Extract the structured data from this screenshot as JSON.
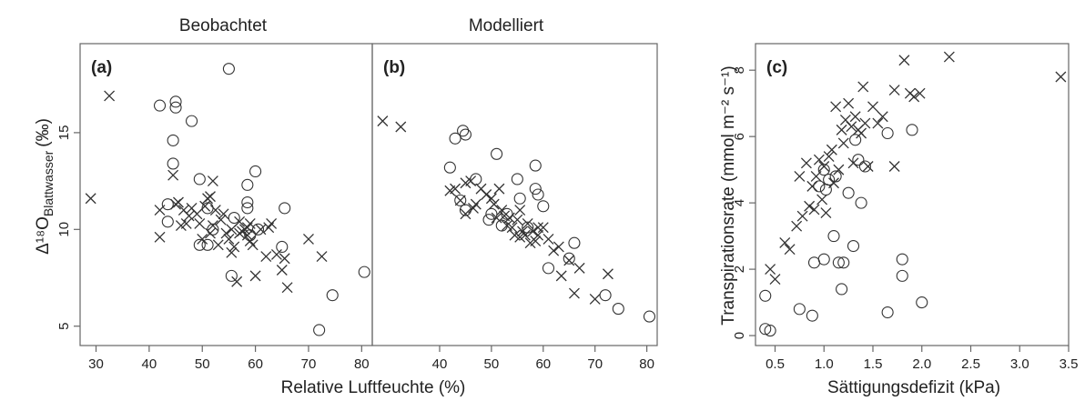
{
  "titles": {
    "left": "Beobachtet",
    "middle": "Modelliert",
    "xlabel_ab": "Relative Luftfeuchte (%)",
    "ylabel_ab": "Δ¹⁸O",
    "ylabel_ab_sub": "Blattwasser",
    "ylabel_ab_unit": "(‰)",
    "xlabel_c": "Sättigungsdefizit (kPa)",
    "ylabel_c": "Transpirationsrate (mmol m⁻² s⁻¹)"
  },
  "chart_data": [
    {
      "type": "scatter",
      "panel": "(a)",
      "title": "Beobachtet",
      "xlim": [
        27,
        82
      ],
      "ylim": [
        4,
        19.6
      ],
      "xticks": [
        30,
        40,
        50,
        60,
        70,
        80
      ],
      "yticks": [
        5,
        10,
        15
      ],
      "circles": [
        [
          42,
          16.4
        ],
        [
          43.5,
          11.3
        ],
        [
          43.5,
          10.4
        ],
        [
          44.5,
          13.4
        ],
        [
          44.5,
          14.6
        ],
        [
          45,
          16.3
        ],
        [
          45,
          16.6
        ],
        [
          48,
          15.6
        ],
        [
          49.5,
          12.6
        ],
        [
          49.5,
          9.2
        ],
        [
          51,
          9.2
        ],
        [
          51,
          11.1
        ],
        [
          52,
          10
        ],
        [
          55,
          18.3
        ],
        [
          55.5,
          7.6
        ],
        [
          56,
          10.6
        ],
        [
          58.5,
          12.3
        ],
        [
          58.5,
          11.4
        ],
        [
          58.5,
          11.1
        ],
        [
          59,
          9.7
        ],
        [
          60,
          13
        ],
        [
          60.5,
          10
        ],
        [
          65,
          9.1
        ],
        [
          65.5,
          11.1
        ],
        [
          72,
          4.8
        ],
        [
          74.5,
          6.6
        ],
        [
          80.5,
          7.8
        ]
      ],
      "crosses": [
        [
          29,
          11.6
        ],
        [
          32.5,
          16.9
        ],
        [
          42,
          11
        ],
        [
          42,
          9.6
        ],
        [
          44.5,
          12.8
        ],
        [
          45,
          11.3
        ],
        [
          45.5,
          11.4
        ],
        [
          46,
          10.2
        ],
        [
          46.5,
          11
        ],
        [
          47,
          10.3
        ],
        [
          47.5,
          10.7
        ],
        [
          48,
          11.1
        ],
        [
          49,
          10.8
        ],
        [
          49.5,
          10.3
        ],
        [
          50,
          9.5
        ],
        [
          50.5,
          11.2
        ],
        [
          51,
          11.6
        ],
        [
          51.5,
          9.8
        ],
        [
          51.5,
          11.7
        ],
        [
          52,
          12.5
        ],
        [
          52,
          10.2
        ],
        [
          52.5,
          11
        ],
        [
          53,
          9.2
        ],
        [
          53.5,
          10.5
        ],
        [
          54,
          10.8
        ],
        [
          54.5,
          9.8
        ],
        [
          55,
          9.5
        ],
        [
          55.5,
          10
        ],
        [
          55.5,
          8.8
        ],
        [
          56,
          9.1
        ],
        [
          56.5,
          7.3
        ],
        [
          57,
          10.4
        ],
        [
          57,
          9.8
        ],
        [
          57.5,
          9.9
        ],
        [
          58,
          10
        ],
        [
          58.5,
          9.7
        ],
        [
          58.5,
          10.1
        ],
        [
          59,
          9.4
        ],
        [
          59,
          10.3
        ],
        [
          59.5,
          9.2
        ],
        [
          60,
          7.6
        ],
        [
          61,
          10
        ],
        [
          62,
          8.6
        ],
        [
          62.5,
          10.1
        ],
        [
          63,
          10.3
        ],
        [
          64,
          8.7
        ],
        [
          65,
          7.9
        ],
        [
          65.5,
          8.5
        ],
        [
          66,
          7
        ],
        [
          70,
          9.5
        ],
        [
          72.5,
          8.6
        ]
      ]
    },
    {
      "type": "scatter",
      "panel": "(b)",
      "title": "Modelliert",
      "xlim": [
        27,
        82
      ],
      "ylim": [
        4,
        19.6
      ],
      "xticks": [
        40,
        50,
        60,
        70,
        80
      ],
      "yticks": [
        5,
        10,
        15
      ],
      "circles": [
        [
          42,
          13.2
        ],
        [
          43,
          14.7
        ],
        [
          44,
          11.5
        ],
        [
          44.5,
          15.1
        ],
        [
          45,
          14.9
        ],
        [
          45,
          11
        ],
        [
          47,
          12.6
        ],
        [
          49.5,
          10.5
        ],
        [
          50,
          10.8
        ],
        [
          51,
          13.9
        ],
        [
          52,
          10.2
        ],
        [
          53,
          10.8
        ],
        [
          55,
          12.6
        ],
        [
          55.5,
          11.6
        ],
        [
          57,
          10.1
        ],
        [
          58.5,
          13.3
        ],
        [
          58.5,
          12.1
        ],
        [
          59,
          11.8
        ],
        [
          60,
          11.2
        ],
        [
          61,
          8
        ],
        [
          65,
          8.5
        ],
        [
          66,
          9.3
        ],
        [
          72,
          6.6
        ],
        [
          74.5,
          5.9
        ],
        [
          80.5,
          5.5
        ]
      ],
      "crosses": [
        [
          29,
          15.6
        ],
        [
          32.5,
          15.3
        ],
        [
          42,
          12
        ],
        [
          43,
          12.1
        ],
        [
          44,
          11.5
        ],
        [
          45,
          12.4
        ],
        [
          45,
          10.8
        ],
        [
          46,
          12.5
        ],
        [
          46.5,
          11.1
        ],
        [
          47,
          11.3
        ],
        [
          48,
          12.1
        ],
        [
          49,
          11.8
        ],
        [
          50,
          11.6
        ],
        [
          50.5,
          11.3
        ],
        [
          51,
          10.6
        ],
        [
          51.5,
          12.1
        ],
        [
          52,
          11
        ],
        [
          52.5,
          10.7
        ],
        [
          53,
          10.2
        ],
        [
          53.5,
          10.6
        ],
        [
          54,
          10.1
        ],
        [
          54.5,
          9.7
        ],
        [
          55,
          10.5
        ],
        [
          55.5,
          9.6
        ],
        [
          55.5,
          11
        ],
        [
          56,
          9.9
        ],
        [
          56.5,
          9.7
        ],
        [
          57,
          10.3
        ],
        [
          57.5,
          9.3
        ],
        [
          58,
          9.9
        ],
        [
          58.5,
          9.4
        ],
        [
          59,
          10.1
        ],
        [
          59,
          9.7
        ],
        [
          60,
          10.1
        ],
        [
          61,
          9.5
        ],
        [
          62,
          8.9
        ],
        [
          63,
          9.1
        ],
        [
          63.5,
          7.6
        ],
        [
          65,
          8.4
        ],
        [
          66,
          6.7
        ],
        [
          67,
          8
        ],
        [
          70,
          6.4
        ],
        [
          72.5,
          7.7
        ]
      ]
    },
    {
      "type": "scatter",
      "panel": "(c)",
      "xlim": [
        0.3,
        3.5
      ],
      "ylim": [
        -0.3,
        8.8
      ],
      "xticks": [
        0.5,
        1.0,
        1.5,
        2.0,
        2.5,
        3.0,
        3.5
      ],
      "xtick_labels": [
        "0.5",
        "1.0",
        "1.5",
        "2.0",
        "2.5",
        "3.0",
        "3.5"
      ],
      "yticks": [
        0,
        2,
        4,
        6,
        8
      ],
      "circles": [
        [
          0.4,
          1.2
        ],
        [
          0.4,
          0.2
        ],
        [
          0.45,
          0.15
        ],
        [
          0.75,
          0.8
        ],
        [
          0.88,
          0.6
        ],
        [
          0.9,
          2.2
        ],
        [
          0.95,
          4.5
        ],
        [
          1.0,
          2.3
        ],
        [
          1.0,
          5
        ],
        [
          1.02,
          4.4
        ],
        [
          1.05,
          4.7
        ],
        [
          1.1,
          3
        ],
        [
          1.12,
          4.8
        ],
        [
          1.15,
          2.2
        ],
        [
          1.18,
          1.4
        ],
        [
          1.2,
          2.2
        ],
        [
          1.25,
          4.3
        ],
        [
          1.3,
          2.7
        ],
        [
          1.32,
          5.9
        ],
        [
          1.35,
          5.3
        ],
        [
          1.38,
          4
        ],
        [
          1.42,
          5.1
        ],
        [
          1.65,
          0.7
        ],
        [
          1.65,
          6.1
        ],
        [
          1.8,
          2.3
        ],
        [
          1.8,
          1.8
        ],
        [
          1.9,
          6.2
        ],
        [
          2.0,
          1
        ]
      ],
      "crosses": [
        [
          0.45,
          2
        ],
        [
          0.5,
          1.7
        ],
        [
          0.6,
          2.8
        ],
        [
          0.65,
          2.6
        ],
        [
          0.72,
          3.3
        ],
        [
          0.75,
          4.8
        ],
        [
          0.78,
          3.6
        ],
        [
          0.82,
          5.2
        ],
        [
          0.85,
          3.9
        ],
        [
          0.88,
          4.5
        ],
        [
          0.9,
          3.8
        ],
        [
          0.92,
          4.8
        ],
        [
          0.95,
          5.3
        ],
        [
          0.98,
          4.1
        ],
        [
          1.0,
          5.1
        ],
        [
          1.02,
          3.7
        ],
        [
          1.05,
          5.4
        ],
        [
          1.08,
          5.6
        ],
        [
          1.1,
          4.6
        ],
        [
          1.12,
          6.9
        ],
        [
          1.15,
          5
        ],
        [
          1.18,
          6.2
        ],
        [
          1.2,
          5.8
        ],
        [
          1.22,
          6.5
        ],
        [
          1.25,
          7
        ],
        [
          1.28,
          6.3
        ],
        [
          1.3,
          5.2
        ],
        [
          1.32,
          6.6
        ],
        [
          1.35,
          6.2
        ],
        [
          1.38,
          6.1
        ],
        [
          1.4,
          7.5
        ],
        [
          1.42,
          6.4
        ],
        [
          1.45,
          5.1
        ],
        [
          1.5,
          6.9
        ],
        [
          1.55,
          6.4
        ],
        [
          1.6,
          6.6
        ],
        [
          1.72,
          7.4
        ],
        [
          1.72,
          5.1
        ],
        [
          1.82,
          8.3
        ],
        [
          1.88,
          7.3
        ],
        [
          1.92,
          7.2
        ],
        [
          1.98,
          7.3
        ],
        [
          2.28,
          8.4
        ],
        [
          3.42,
          7.8
        ]
      ]
    }
  ]
}
